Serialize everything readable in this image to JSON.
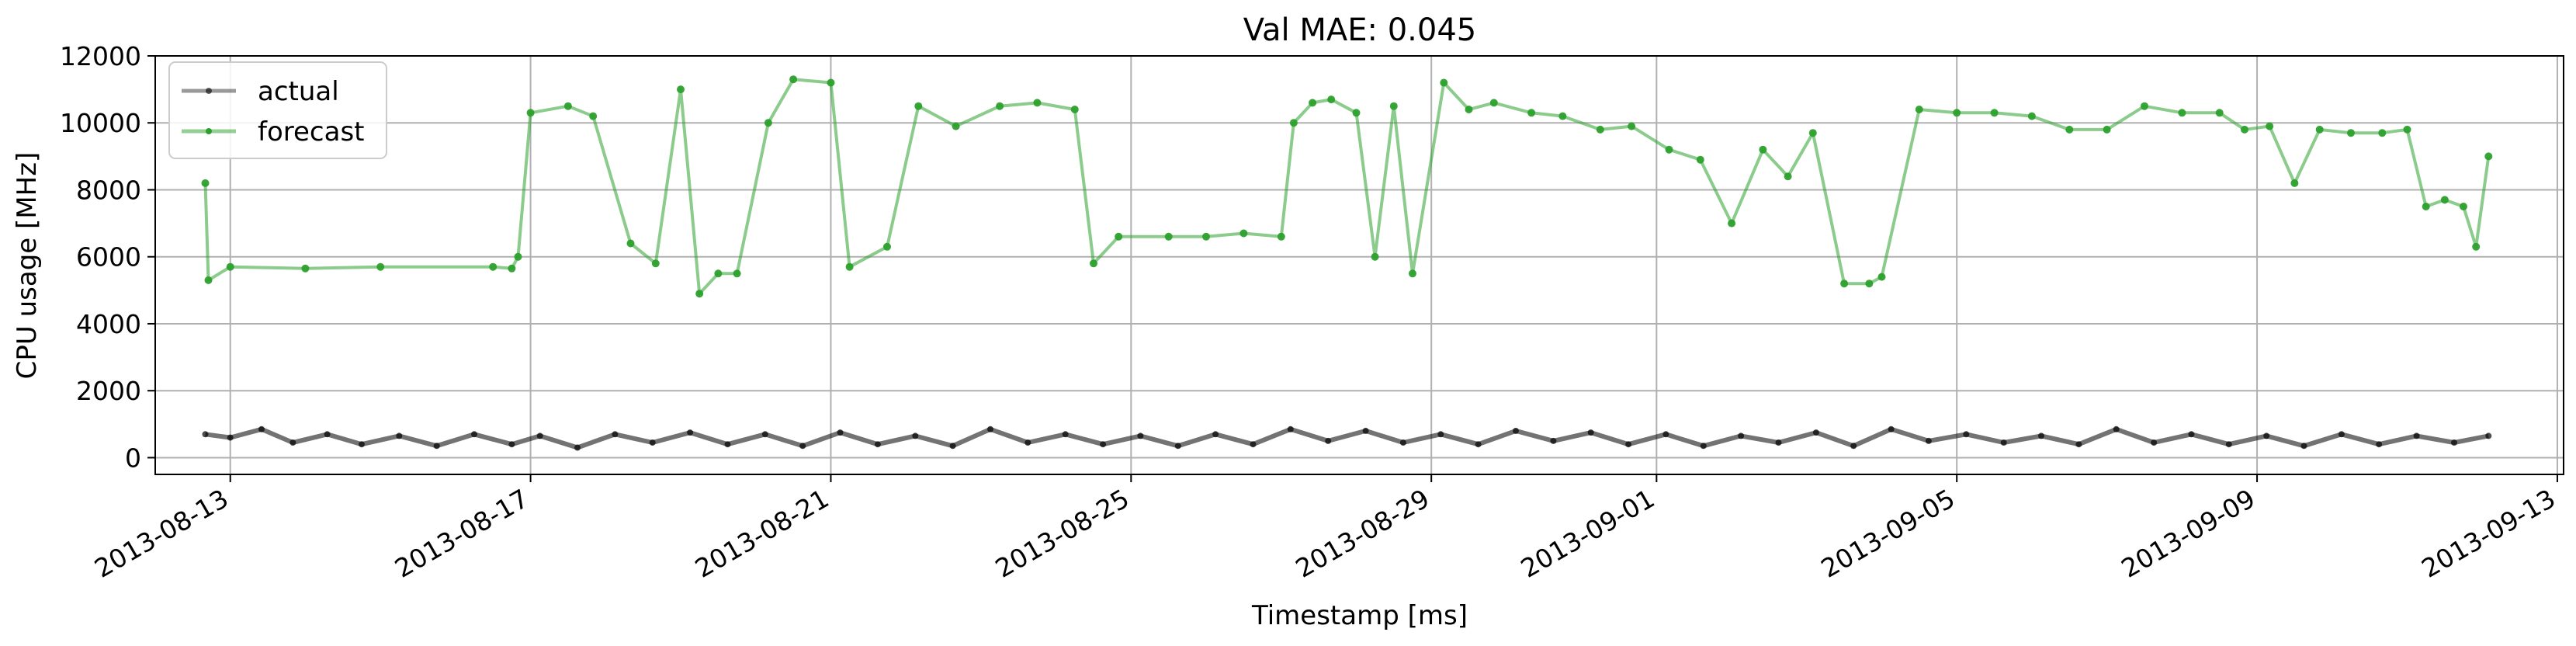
{
  "chart_data": {
    "type": "line",
    "title": "Val MAE: 0.045",
    "xlabel": "Timestamp [ms]",
    "ylabel": "CPU usage [MHz]",
    "xlim": [
      "2013-08-12T00:00",
      "2013-09-13T02:00"
    ],
    "ylim": [
      -500,
      12000
    ],
    "x_ticks": [
      "2013-08-13",
      "2013-08-17",
      "2013-08-21",
      "2013-08-25",
      "2013-08-29",
      "2013-09-01",
      "2013-09-05",
      "2013-09-09",
      "2013-09-13"
    ],
    "y_ticks": [
      0,
      2000,
      4000,
      6000,
      8000,
      10000,
      12000
    ],
    "grid": true,
    "legend_position": "upper-left",
    "series": [
      {
        "name": "actual",
        "color": "#000000",
        "x": [
          "2013-08-12T16:00",
          "2013-08-13T00:00",
          "2013-08-13T10:00",
          "2013-08-13T20:00",
          "2013-08-14T07:00",
          "2013-08-14T18:00",
          "2013-08-15T06:00",
          "2013-08-15T18:00",
          "2013-08-16T06:00",
          "2013-08-16T18:00",
          "2013-08-17T03:00",
          "2013-08-17T15:00",
          "2013-08-18T03:00",
          "2013-08-18T15:00",
          "2013-08-19T03:00",
          "2013-08-19T15:00",
          "2013-08-20T03:00",
          "2013-08-20T15:00",
          "2013-08-21T03:00",
          "2013-08-21T15:00",
          "2013-08-22T03:00",
          "2013-08-22T15:00",
          "2013-08-23T03:00",
          "2013-08-23T15:00",
          "2013-08-24T03:00",
          "2013-08-24T15:00",
          "2013-08-25T03:00",
          "2013-08-25T15:00",
          "2013-08-26T03:00",
          "2013-08-26T15:00",
          "2013-08-27T03:00",
          "2013-08-27T15:00",
          "2013-08-28T03:00",
          "2013-08-28T15:00",
          "2013-08-29T03:00",
          "2013-08-29T15:00",
          "2013-08-30T03:00",
          "2013-08-30T15:00",
          "2013-08-31T03:00",
          "2013-08-31T15:00",
          "2013-09-01T03:00",
          "2013-09-01T15:00",
          "2013-09-02T03:00",
          "2013-09-02T15:00",
          "2013-09-03T03:00",
          "2013-09-03T15:00",
          "2013-09-04T03:00",
          "2013-09-04T15:00",
          "2013-09-05T03:00",
          "2013-09-05T15:00",
          "2013-09-06T03:00",
          "2013-09-06T15:00",
          "2013-09-07T03:00",
          "2013-09-07T15:00",
          "2013-09-08T03:00",
          "2013-09-08T15:00",
          "2013-09-09T03:00",
          "2013-09-09T15:00",
          "2013-09-10T03:00",
          "2013-09-10T15:00",
          "2013-09-11T03:00",
          "2013-09-11T15:00",
          "2013-09-12T02:00"
        ],
        "values": [
          700,
          600,
          850,
          450,
          700,
          400,
          650,
          350,
          700,
          400,
          650,
          300,
          700,
          450,
          750,
          400,
          700,
          350,
          750,
          400,
          650,
          350,
          850,
          450,
          700,
          400,
          650,
          350,
          700,
          400,
          850,
          500,
          800,
          450,
          700,
          400,
          800,
          500,
          750,
          400,
          700,
          350,
          650,
          450,
          750,
          350,
          850,
          500,
          700,
          450,
          650,
          400,
          850,
          450,
          700,
          400,
          650,
          350,
          700,
          400,
          650,
          450,
          650
        ]
      },
      {
        "name": "forecast",
        "color": "#2ca02c",
        "x": [
          "2013-08-12T16:00",
          "2013-08-12T17:00",
          "2013-08-13T00:00",
          "2013-08-14T00:00",
          "2013-08-15T00:00",
          "2013-08-16T12:00",
          "2013-08-16T18:00",
          "2013-08-16T20:00",
          "2013-08-17T00:00",
          "2013-08-17T12:00",
          "2013-08-17T20:00",
          "2013-08-18T08:00",
          "2013-08-18T16:00",
          "2013-08-19T00:00",
          "2013-08-19T06:00",
          "2013-08-19T12:00",
          "2013-08-19T18:00",
          "2013-08-20T04:00",
          "2013-08-20T12:00",
          "2013-08-21T00:00",
          "2013-08-21T06:00",
          "2013-08-21T18:00",
          "2013-08-22T04:00",
          "2013-08-22T16:00",
          "2013-08-23T06:00",
          "2013-08-23T18:00",
          "2013-08-24T06:00",
          "2013-08-24T12:00",
          "2013-08-24T20:00",
          "2013-08-25T12:00",
          "2013-08-26T00:00",
          "2013-08-26T12:00",
          "2013-08-27T00:00",
          "2013-08-27T04:00",
          "2013-08-27T10:00",
          "2013-08-27T16:00",
          "2013-08-28T00:00",
          "2013-08-28T06:00",
          "2013-08-28T12:00",
          "2013-08-28T18:00",
          "2013-08-29T04:00",
          "2013-08-29T12:00",
          "2013-08-29T20:00",
          "2013-08-30T08:00",
          "2013-08-30T18:00",
          "2013-08-31T06:00",
          "2013-08-31T16:00",
          "2013-09-01T04:00",
          "2013-09-01T14:00",
          "2013-09-02T00:00",
          "2013-09-02T10:00",
          "2013-09-02T18:00",
          "2013-09-03T02:00",
          "2013-09-03T12:00",
          "2013-09-03T20:00",
          "2013-09-04T00:00",
          "2013-09-04T12:00",
          "2013-09-05T00:00",
          "2013-09-05T12:00",
          "2013-09-06T00:00",
          "2013-09-06T12:00",
          "2013-09-07T00:00",
          "2013-09-07T12:00",
          "2013-09-08T00:00",
          "2013-09-08T12:00",
          "2013-09-08T20:00",
          "2013-09-09T04:00",
          "2013-09-09T12:00",
          "2013-09-09T20:00",
          "2013-09-10T06:00",
          "2013-09-10T16:00",
          "2013-09-11T00:00",
          "2013-09-11T06:00",
          "2013-09-11T12:00",
          "2013-09-11T18:00",
          "2013-09-11T22:00",
          "2013-09-12T02:00"
        ],
        "values": [
          8200,
          5300,
          5700,
          5650,
          5700,
          5700,
          5650,
          6000,
          10300,
          10500,
          10200,
          6400,
          5800,
          11000,
          4900,
          5500,
          5500,
          10000,
          11300,
          11200,
          5700,
          6300,
          10500,
          9900,
          10500,
          10600,
          10400,
          5800,
          6600,
          6600,
          6600,
          6700,
          6600,
          10000,
          10600,
          10700,
          10300,
          6000,
          10500,
          5500,
          11200,
          10400,
          10600,
          10300,
          10200,
          9800,
          9900,
          9200,
          8900,
          7000,
          9200,
          8400,
          9700,
          5200,
          5200,
          5400,
          10400,
          10300,
          10300,
          10200,
          9800,
          9800,
          10500,
          10300,
          10300,
          9800,
          9900,
          8200,
          9800,
          9700,
          9700,
          9800,
          7500,
          7700,
          7500,
          6300,
          9000
        ]
      }
    ]
  }
}
